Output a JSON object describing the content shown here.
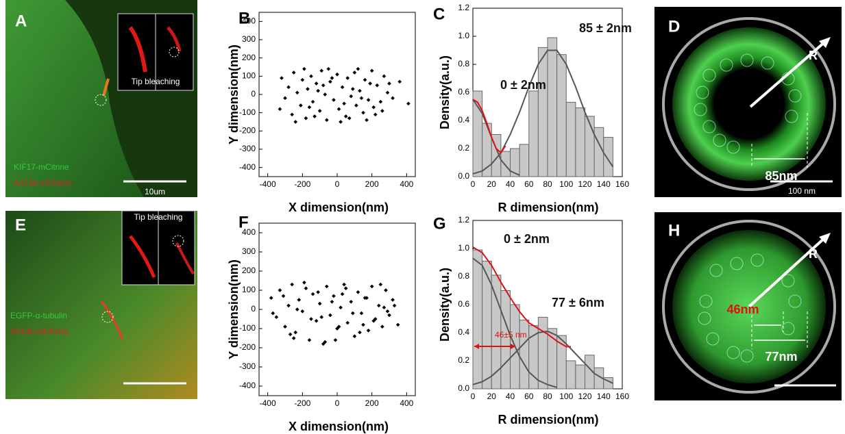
{
  "chart_data": [
    {
      "type": "scatter",
      "label": "B",
      "xlabel": "X dimension(nm)",
      "ylabel": "Y dimension(nm)",
      "color": "#000000",
      "x": [
        -320,
        -300,
        -280,
        -260,
        -250,
        -230,
        -210,
        -200,
        -180,
        -170,
        -150,
        -140,
        -120,
        -100,
        -90,
        -70,
        -60,
        -40,
        -20,
        0,
        10,
        30,
        50,
        60,
        80,
        100,
        110,
        130,
        150,
        160,
        180,
        200,
        210,
        230,
        250,
        270,
        290,
        320,
        360,
        410,
        -330,
        -240,
        -190,
        -130,
        -50,
        20,
        70,
        120,
        170,
        220,
        300,
        -110,
        -30,
        40,
        90,
        140,
        190,
        -160,
        -80,
        260
      ],
      "values": [
        90,
        -20,
        40,
        -110,
        120,
        10,
        -60,
        80,
        -130,
        30,
        100,
        -40,
        60,
        -90,
        130,
        0,
        -140,
        70,
        -30,
        110,
        -80,
        40,
        -120,
        90,
        -10,
        120,
        -60,
        20,
        -100,
        80,
        -30,
        130,
        -70,
        50,
        -40,
        100,
        10,
        -20,
        70,
        -50,
        -80,
        -150,
        140,
        -120,
        140,
        -150,
        -130,
        140,
        -140,
        -110,
        60,
        20,
        90,
        -50,
        30,
        -20,
        60,
        -70,
        50,
        -90
      ],
      "xlim": [
        -450,
        450
      ],
      "ylim": [
        -450,
        450
      ],
      "xticks": [
        -400,
        -200,
        0,
        200,
        400
      ],
      "yticks": [
        -400,
        -300,
        -200,
        -100,
        0,
        100,
        200,
        300,
        400
      ]
    },
    {
      "type": "histogram",
      "label": "C",
      "xlabel": "R dimension(nm)",
      "ylabel": "Density(a.u.)",
      "color": "#c8c8c8",
      "bins": [
        0,
        10,
        20,
        30,
        40,
        50,
        60,
        70,
        80,
        90,
        100,
        110,
        120,
        130,
        140,
        150
      ],
      "values": [
        0.61,
        0.38,
        0.3,
        0.18,
        0.2,
        0.23,
        0.61,
        0.92,
        0.99,
        0.87,
        0.53,
        0.49,
        0.43,
        0.35,
        0.28
      ],
      "xlim": [
        0,
        160
      ],
      "ylim": [
        0,
        1.2
      ],
      "xticks": [
        0,
        20,
        40,
        60,
        80,
        100,
        120,
        140,
        160
      ],
      "yticks": [
        {
          "value": 0,
          "label": "0.0"
        },
        0.2,
        0.4,
        0.6,
        0.8,
        {
          "value": 1,
          "label": "1.0"
        },
        1.2
      ],
      "curves": [
        {
          "color": "#555555",
          "x": [
            0,
            10,
            20,
            30,
            40,
            50
          ],
          "values": [
            0.55,
            0.45,
            0.28,
            0.12,
            0.04,
            0.01
          ]
        },
        {
          "color": "#555555",
          "x": [
            0,
            10,
            20,
            30,
            40,
            50,
            60,
            70,
            80,
            90,
            100,
            110,
            120,
            130,
            140,
            150
          ],
          "values": [
            0.02,
            0.04,
            0.09,
            0.17,
            0.3,
            0.46,
            0.64,
            0.8,
            0.9,
            0.9,
            0.8,
            0.64,
            0.46,
            0.3,
            0.17,
            0.07
          ]
        },
        {
          "color": "#e01010",
          "x": [
            0,
            5,
            10,
            15,
            20,
            25,
            30,
            35
          ],
          "values": [
            0.55,
            0.53,
            0.47,
            0.38,
            0.28,
            0.2,
            0.17,
            0.22
          ]
        }
      ],
      "annotations": [
        "85 ± 2nm",
        "0 ± 2nm"
      ]
    },
    {
      "type": "scatter",
      "label": "F",
      "xlabel": "X dimension(nm)",
      "ylabel": "Y dimension(nm)",
      "color": "#000000",
      "x": [
        -380,
        -350,
        -330,
        -300,
        -280,
        -260,
        -240,
        -220,
        -200,
        -180,
        -160,
        -140,
        -120,
        -100,
        -80,
        -60,
        -40,
        -20,
        0,
        20,
        40,
        60,
        80,
        100,
        120,
        140,
        160,
        180,
        200,
        220,
        240,
        260,
        280,
        300,
        320,
        350,
        -370,
        -310,
        -270,
        -230,
        -190,
        -150,
        -110,
        -70,
        -30,
        10,
        50,
        90,
        130,
        170,
        210,
        250,
        290,
        330,
        -250,
        -90,
        30,
        150,
        270,
        -10
      ],
      "values": [
        60,
        -40,
        100,
        -90,
        20,
        130,
        -120,
        50,
        -10,
        110,
        -160,
        80,
        -60,
        30,
        -180,
        120,
        -30,
        70,
        -100,
        10,
        130,
        -70,
        40,
        -140,
        90,
        -20,
        60,
        -110,
        120,
        -50,
        20,
        -90,
        100,
        -30,
        50,
        -80,
        -20,
        70,
        -130,
        0,
        140,
        -50,
        90,
        -170,
        40,
        -90,
        110,
        -20,
        -120,
        60,
        -60,
        130,
        -10,
        20,
        -150,
        -40,
        80,
        -80,
        10,
        -160
      ],
      "xlim": [
        -450,
        450
      ],
      "ylim": [
        -450,
        450
      ],
      "xticks": [
        -400,
        -200,
        0,
        200,
        400
      ],
      "yticks": [
        -400,
        -300,
        -200,
        -100,
        0,
        100,
        200,
        300,
        400
      ]
    },
    {
      "type": "histogram",
      "label": "G",
      "xlabel": "R dimension(nm)",
      "ylabel": "Density(a.u.)",
      "color": "#c8c8c8",
      "bins": [
        0,
        10,
        20,
        30,
        40,
        50,
        60,
        70,
        80,
        90,
        100,
        110,
        120,
        130,
        140,
        150
      ],
      "values": [
        0.99,
        0.91,
        0.81,
        0.7,
        0.6,
        0.49,
        0.45,
        0.51,
        0.43,
        0.38,
        0.2,
        0.17,
        0.24,
        0.15,
        0.08
      ],
      "xlim": [
        0,
        160
      ],
      "ylim": [
        0,
        1.2
      ],
      "xticks": [
        0,
        20,
        40,
        60,
        80,
        100,
        120,
        140,
        160
      ],
      "yticks": [
        {
          "value": 0,
          "label": "0.0"
        },
        0.2,
        0.4,
        0.6,
        0.8,
        {
          "value": 1,
          "label": "1.0"
        },
        1.2
      ],
      "curves": [
        {
          "color": "#555555",
          "x": [
            0,
            10,
            20,
            30,
            40,
            50,
            60,
            70,
            80,
            90
          ],
          "values": [
            0.93,
            0.88,
            0.74,
            0.56,
            0.38,
            0.23,
            0.12,
            0.06,
            0.03,
            0.01
          ]
        },
        {
          "color": "#555555",
          "x": [
            0,
            10,
            20,
            30,
            40,
            50,
            60,
            70,
            80,
            90,
            100,
            110,
            120,
            130,
            140,
            150
          ],
          "values": [
            0.03,
            0.05,
            0.09,
            0.15,
            0.22,
            0.29,
            0.36,
            0.4,
            0.41,
            0.38,
            0.32,
            0.25,
            0.18,
            0.11,
            0.07,
            0.04
          ]
        },
        {
          "color": "#e01010",
          "x": [
            0,
            10,
            20,
            30,
            40,
            50,
            60,
            70,
            80,
            90,
            100,
            105
          ],
          "values": [
            1.01,
            0.97,
            0.88,
            0.76,
            0.65,
            0.55,
            0.47,
            0.43,
            0.39,
            0.34,
            0.3,
            0.3
          ]
        }
      ],
      "annotations": [
        "0 ± 2nm",
        "77 ± 6nm",
        "46±5 nm"
      ]
    }
  ],
  "images": [
    {
      "label": "A",
      "lines": [
        "KIF17-mCitrine",
        "Arl13b-mCherry"
      ],
      "inset": "Tip bleaching",
      "scale": "10um"
    },
    {
      "label": "E",
      "lines": [
        "EGFP-α-tubulin",
        "Arl13b-mCherry"
      ],
      "inset": "Tip bleaching"
    }
  ],
  "diagrams": [
    {
      "label": "D",
      "axis": "R",
      "radius": "85nm",
      "scale": "100 nm"
    },
    {
      "label": "H",
      "axis": "R",
      "inner": "46nm",
      "radius": "77nm"
    }
  ]
}
